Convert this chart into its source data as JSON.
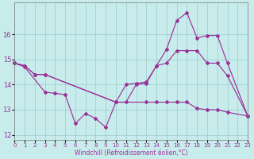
{
  "bg_color": "#c8ecec",
  "grid_color": "#99cccc",
  "line_color": "#993399",
  "xlabel": "Windchill (Refroidissement éolien,°C)",
  "xlim": [
    0,
    23
  ],
  "ylim": [
    11.8,
    17.25
  ],
  "ytick_vals": [
    12,
    13,
    14,
    15,
    16
  ],
  "xtick_vals": [
    0,
    1,
    2,
    3,
    4,
    5,
    6,
    7,
    8,
    9,
    10,
    11,
    12,
    13,
    14,
    15,
    16,
    17,
    18,
    19,
    20,
    21,
    22,
    23
  ],
  "line_A_x": [
    0,
    1,
    2,
    3,
    10,
    11,
    12,
    13,
    14,
    15,
    16,
    17,
    18,
    19,
    20,
    21,
    23
  ],
  "line_A_y": [
    14.85,
    14.75,
    14.4,
    14.4,
    13.3,
    14.0,
    14.05,
    14.1,
    14.75,
    15.4,
    16.55,
    16.85,
    15.85,
    15.95,
    15.95,
    14.85,
    12.75
  ],
  "line_B_x": [
    0,
    1,
    2,
    3,
    10,
    11,
    12,
    13,
    14,
    15,
    16,
    17,
    18,
    19,
    20,
    21,
    23
  ],
  "line_B_y": [
    14.85,
    14.75,
    14.4,
    14.4,
    13.3,
    13.3,
    14.0,
    14.05,
    14.75,
    14.85,
    15.35,
    15.35,
    15.35,
    14.85,
    14.85,
    14.35,
    12.75
  ],
  "line_C_x": [
    0,
    1,
    3,
    4,
    5,
    6,
    7,
    8,
    9,
    10,
    13,
    14,
    15,
    16,
    17,
    18,
    19,
    20,
    21,
    23
  ],
  "line_C_y": [
    14.85,
    14.7,
    13.7,
    13.65,
    13.6,
    12.45,
    12.85,
    12.65,
    12.3,
    13.3,
    13.3,
    13.3,
    13.3,
    13.3,
    13.3,
    13.05,
    13.0,
    13.0,
    12.9,
    12.75
  ]
}
